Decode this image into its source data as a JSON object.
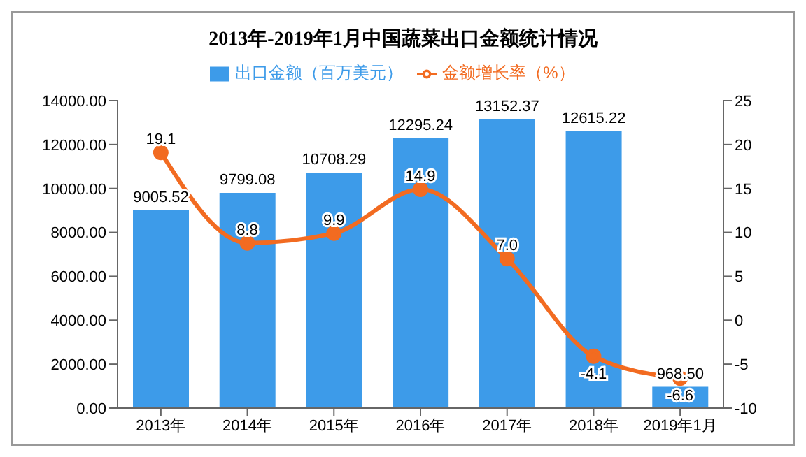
{
  "chart_data": {
    "type": "bar",
    "title": "2013年-2019年1月中国蔬菜出口金额统计情况",
    "categories": [
      "2013年",
      "2014年",
      "2015年",
      "2016年",
      "2017年",
      "2018年",
      "2019年1月"
    ],
    "series": [
      {
        "name": "出口金额（百万美元）",
        "color": "#3d9be9",
        "values": [
          9005.52,
          9799.08,
          10708.29,
          12295.24,
          13152.37,
          12615.22,
          968.5
        ],
        "value_labels": [
          "9005.52",
          "9799.08",
          "10708.29",
          "12295.24",
          "13152.37",
          "12615.22",
          "968.50"
        ]
      },
      {
        "name": "金额增长率（%）",
        "type": "line",
        "axis": "y2",
        "color": "#f26b21",
        "values": [
          19.1,
          8.8,
          9.9,
          14.9,
          7.0,
          -4.1,
          -6.6
        ],
        "value_labels": [
          "19.1",
          "8.8",
          "9.9",
          "14.9",
          "7.0",
          "-4.1",
          "-6.6"
        ]
      }
    ],
    "ylim": [
      0,
      14000
    ],
    "yticks": [
      {
        "value": 0,
        "label": "0.00"
      },
      {
        "value": 2000,
        "label": "2000.00"
      },
      {
        "value": 4000,
        "label": "4000.00"
      },
      {
        "value": 6000,
        "label": "6000.00"
      },
      {
        "value": 8000,
        "label": "8000.00"
      },
      {
        "value": 10000,
        "label": "10000.00"
      },
      {
        "value": 12000,
        "label": "12000.00"
      },
      {
        "value": 14000,
        "label": "14000.00"
      }
    ],
    "y2lim": [
      -10,
      25
    ],
    "y2ticks": [
      -10,
      -5,
      0,
      5,
      10,
      15,
      20,
      25
    ],
    "legend": "top",
    "marker": "circle"
  }
}
